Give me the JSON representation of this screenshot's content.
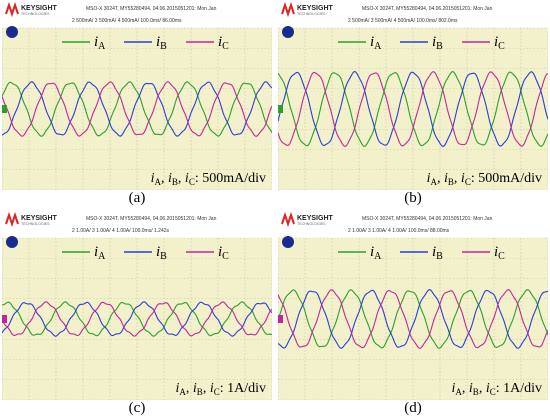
{
  "colors": {
    "iA": "#2ca02c",
    "iB": "#2a3fd0",
    "iC": "#c0289a",
    "screen": "#f3f0cc",
    "grid": "#c4c4a8",
    "header": "#ffffff"
  },
  "panels": [
    {
      "id": "a",
      "label": "(a)",
      "brand": "KEYSIGHT",
      "brand_sub": "TECHNOLOGIES",
      "status_line": "MSO-X 3024T, MY55280494, 04.06.2015051201: Mon Jan",
      "ch_line": "2   500mA/   3   500mA/   4   500mA/   100.0ms/   86.00ms",
      "legend": [
        {
          "name": "i",
          "sub": "A"
        },
        {
          "name": "i",
          "sub": "B"
        },
        {
          "name": "i",
          "sub": "C"
        }
      ],
      "scale_text": "iA, iB, iC: 500mA/div",
      "chart_data": {
        "type": "line",
        "xlim": [
          0,
          10
        ],
        "ylim": [
          -4,
          4
        ],
        "grid": true,
        "legend_position": "top-center",
        "series": [
          {
            "name": "iA",
            "amplitude": 1.3,
            "cycles": 4.6,
            "phase_deg": 30
          },
          {
            "name": "iB",
            "amplitude": 1.3,
            "cycles": 4.6,
            "phase_deg": -90
          },
          {
            "name": "iC",
            "amplitude": 1.3,
            "cycles": 4.6,
            "phase_deg": 150
          }
        ]
      }
    },
    {
      "id": "b",
      "label": "(b)",
      "brand": "KEYSIGHT",
      "brand_sub": "TECHNOLOGIES",
      "status_line": "MSO-X 3024T, MY55280494, 04.06.2015051201: Mon Jan",
      "ch_line": "2   500mA/   3   500mA/   4   500mA/   100.0ms/   802.0ms",
      "legend": [
        {
          "name": "i",
          "sub": "A"
        },
        {
          "name": "i",
          "sub": "B"
        },
        {
          "name": "i",
          "sub": "C"
        }
      ],
      "scale_text": "iA, iB, iC: 500mA/div",
      "chart_data": {
        "type": "line",
        "xlim": [
          0,
          10
        ],
        "ylim": [
          -4,
          4
        ],
        "grid": true,
        "legend_position": "top-center",
        "series": [
          {
            "name": "iA",
            "amplitude": 1.8,
            "cycles": 4.6,
            "phase_deg": 100
          },
          {
            "name": "iB",
            "amplitude": 1.8,
            "cycles": 4.6,
            "phase_deg": -20
          },
          {
            "name": "iC",
            "amplitude": 1.8,
            "cycles": 4.6,
            "phase_deg": 220
          }
        ]
      }
    },
    {
      "id": "c",
      "label": "(c)",
      "brand": "KEYSIGHT",
      "brand_sub": "TECHNOLOGIES",
      "status_line": "MSO-X 3024T, MY55280494, 04.06.2015051201: Mon Jan",
      "ch_line": "2   1.00A/   3   1.00A/   4   1.00A/   100.0ms/   1.242s",
      "legend": [
        {
          "name": "i",
          "sub": "A"
        },
        {
          "name": "i",
          "sub": "B"
        },
        {
          "name": "i",
          "sub": "C"
        }
      ],
      "scale_text": "iA, iB, iC: 1A/div",
      "chart_data": {
        "type": "line",
        "xlim": [
          0,
          10
        ],
        "ylim": [
          -4,
          4
        ],
        "grid": true,
        "legend_position": "top-center",
        "series": [
          {
            "name": "iA",
            "amplitude": 0.8,
            "cycles": 4.6,
            "phase_deg": 60
          },
          {
            "name": "iB",
            "amplitude": 0.8,
            "cycles": 4.6,
            "phase_deg": -60
          },
          {
            "name": "iC",
            "amplitude": 0.8,
            "cycles": 4.6,
            "phase_deg": 180
          }
        ]
      }
    },
    {
      "id": "d",
      "label": "(d)",
      "brand": "KEYSIGHT",
      "brand_sub": "TECHNOLOGIES",
      "status_line": "MSO-X 3024T, MY55280494, 04.06.2015051201: Mon Jan",
      "ch_line": "2   1.00A/   3   1.00A/   4   1.00A/   100.0ms/   88.00ms",
      "legend": [
        {
          "name": "i",
          "sub": "A"
        },
        {
          "name": "i",
          "sub": "B"
        },
        {
          "name": "i",
          "sub": "C"
        }
      ],
      "scale_text": "iA, iB, iC: 1A/div",
      "chart_data": {
        "type": "line",
        "xlim": [
          0,
          10
        ],
        "ylim": [
          -4,
          4
        ],
        "grid": true,
        "legend_position": "top-center",
        "series": [
          {
            "name": "iA",
            "amplitude": 1.4,
            "cycles": 4.6,
            "phase_deg": 0
          },
          {
            "name": "iB",
            "amplitude": 1.4,
            "cycles": 4.6,
            "phase_deg": -120
          },
          {
            "name": "iC",
            "amplitude": 1.4,
            "cycles": 4.6,
            "phase_deg": 120
          }
        ]
      }
    }
  ]
}
